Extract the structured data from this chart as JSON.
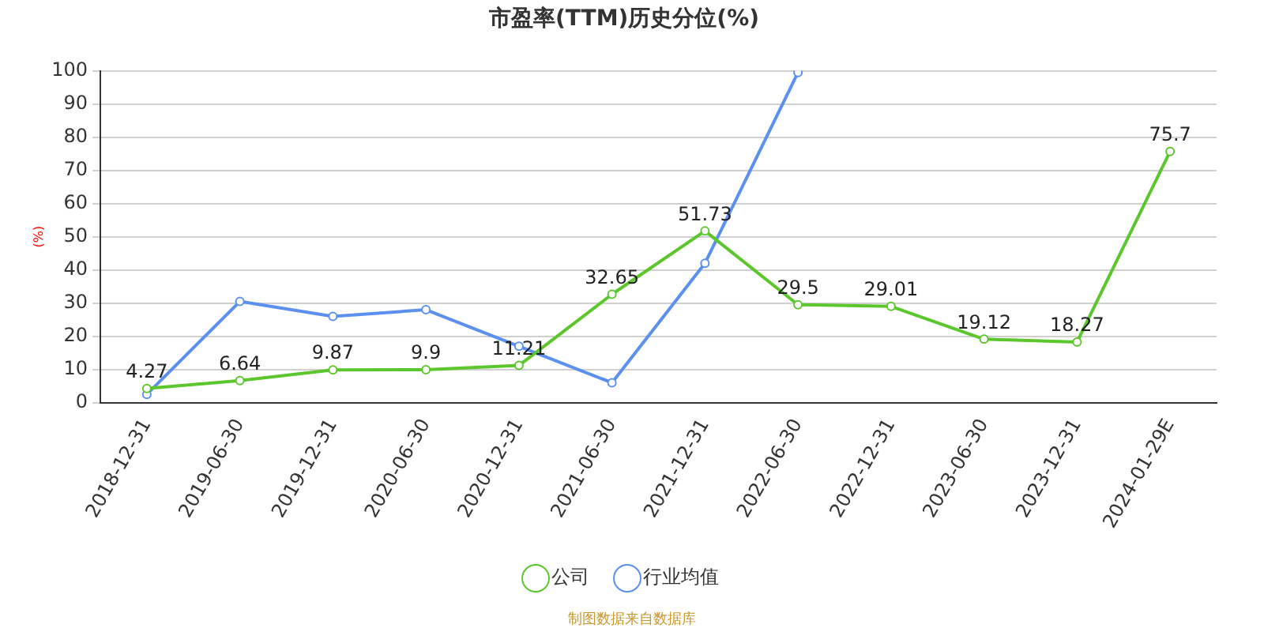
{
  "chart_data": {
    "type": "line",
    "title": "市盈率(TTM)历史分位(%)",
    "ylabel": "(%)",
    "categories": [
      "2018-12-31",
      "2019-06-30",
      "2019-12-31",
      "2020-06-30",
      "2020-12-31",
      "2021-06-30",
      "2021-12-31",
      "2022-06-30",
      "2022-12-31",
      "2023-06-30",
      "2023-12-31",
      "2024-01-29E"
    ],
    "series": [
      {
        "name": "公司",
        "color": "#5cc72c",
        "values": [
          4.27,
          6.64,
          9.87,
          9.9,
          11.21,
          32.65,
          51.73,
          29.5,
          29.01,
          19.12,
          18.27,
          75.7
        ],
        "value_labels": [
          "4.27",
          "6.64",
          "9.87",
          "9.9",
          "11.21",
          "32.65",
          "51.73",
          "29.5",
          "29.01",
          "19.12",
          "18.27",
          "75.7"
        ]
      },
      {
        "name": "行业均值",
        "color": "#5b8ff0",
        "values": [
          2.5,
          30.5,
          26,
          28,
          17,
          6,
          42,
          99.5,
          null,
          null,
          null,
          null
        ]
      }
    ],
    "ylim": [
      0,
      100
    ],
    "yticks": [
      0,
      10,
      20,
      30,
      40,
      50,
      60,
      70,
      80,
      90,
      100
    ],
    "grid": "y",
    "legend": "bottom",
    "marker": "circle",
    "annotations": [
      "制图数据来自数据库"
    ]
  }
}
